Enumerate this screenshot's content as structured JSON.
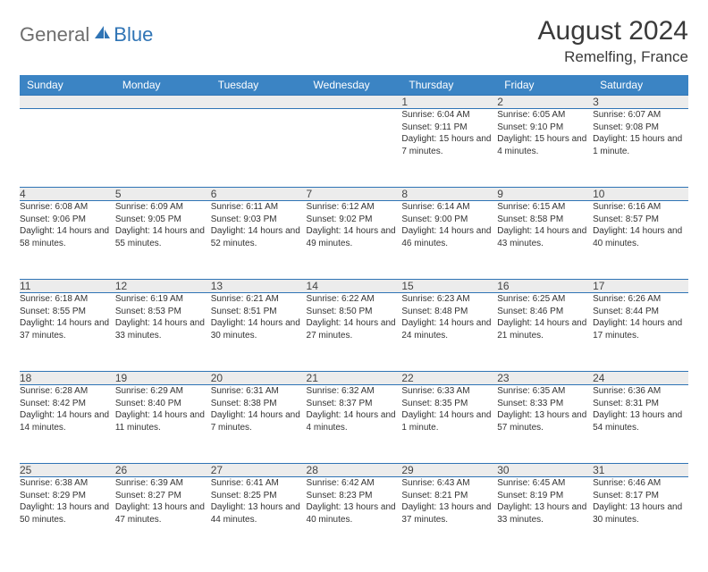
{
  "brand": {
    "part1": "General",
    "part2": "Blue"
  },
  "title": "August 2024",
  "location": "Remelfing, France",
  "colors": {
    "header_bg": "#3b84c4",
    "header_text": "#ffffff",
    "rule": "#2f74b5",
    "daynum_bg": "#ececec",
    "body_text": "#333333",
    "logo_gray": "#6e6e6e",
    "logo_blue": "#2f74b5",
    "page_bg": "#ffffff"
  },
  "typography": {
    "title_fontsize": 30,
    "location_fontsize": 17,
    "header_fontsize": 12,
    "daynum_fontsize": 12,
    "cell_fontsize": 10
  },
  "weekdays": [
    "Sunday",
    "Monday",
    "Tuesday",
    "Wednesday",
    "Thursday",
    "Friday",
    "Saturday"
  ],
  "weeks": [
    [
      null,
      null,
      null,
      null,
      {
        "n": "1",
        "sr": "6:04 AM",
        "ss": "9:11 PM",
        "dl": "15 hours and 7 minutes."
      },
      {
        "n": "2",
        "sr": "6:05 AM",
        "ss": "9:10 PM",
        "dl": "15 hours and 4 minutes."
      },
      {
        "n": "3",
        "sr": "6:07 AM",
        "ss": "9:08 PM",
        "dl": "15 hours and 1 minute."
      }
    ],
    [
      {
        "n": "4",
        "sr": "6:08 AM",
        "ss": "9:06 PM",
        "dl": "14 hours and 58 minutes."
      },
      {
        "n": "5",
        "sr": "6:09 AM",
        "ss": "9:05 PM",
        "dl": "14 hours and 55 minutes."
      },
      {
        "n": "6",
        "sr": "6:11 AM",
        "ss": "9:03 PM",
        "dl": "14 hours and 52 minutes."
      },
      {
        "n": "7",
        "sr": "6:12 AM",
        "ss": "9:02 PM",
        "dl": "14 hours and 49 minutes."
      },
      {
        "n": "8",
        "sr": "6:14 AM",
        "ss": "9:00 PM",
        "dl": "14 hours and 46 minutes."
      },
      {
        "n": "9",
        "sr": "6:15 AM",
        "ss": "8:58 PM",
        "dl": "14 hours and 43 minutes."
      },
      {
        "n": "10",
        "sr": "6:16 AM",
        "ss": "8:57 PM",
        "dl": "14 hours and 40 minutes."
      }
    ],
    [
      {
        "n": "11",
        "sr": "6:18 AM",
        "ss": "8:55 PM",
        "dl": "14 hours and 37 minutes."
      },
      {
        "n": "12",
        "sr": "6:19 AM",
        "ss": "8:53 PM",
        "dl": "14 hours and 33 minutes."
      },
      {
        "n": "13",
        "sr": "6:21 AM",
        "ss": "8:51 PM",
        "dl": "14 hours and 30 minutes."
      },
      {
        "n": "14",
        "sr": "6:22 AM",
        "ss": "8:50 PM",
        "dl": "14 hours and 27 minutes."
      },
      {
        "n": "15",
        "sr": "6:23 AM",
        "ss": "8:48 PM",
        "dl": "14 hours and 24 minutes."
      },
      {
        "n": "16",
        "sr": "6:25 AM",
        "ss": "8:46 PM",
        "dl": "14 hours and 21 minutes."
      },
      {
        "n": "17",
        "sr": "6:26 AM",
        "ss": "8:44 PM",
        "dl": "14 hours and 17 minutes."
      }
    ],
    [
      {
        "n": "18",
        "sr": "6:28 AM",
        "ss": "8:42 PM",
        "dl": "14 hours and 14 minutes."
      },
      {
        "n": "19",
        "sr": "6:29 AM",
        "ss": "8:40 PM",
        "dl": "14 hours and 11 minutes."
      },
      {
        "n": "20",
        "sr": "6:31 AM",
        "ss": "8:38 PM",
        "dl": "14 hours and 7 minutes."
      },
      {
        "n": "21",
        "sr": "6:32 AM",
        "ss": "8:37 PM",
        "dl": "14 hours and 4 minutes."
      },
      {
        "n": "22",
        "sr": "6:33 AM",
        "ss": "8:35 PM",
        "dl": "14 hours and 1 minute."
      },
      {
        "n": "23",
        "sr": "6:35 AM",
        "ss": "8:33 PM",
        "dl": "13 hours and 57 minutes."
      },
      {
        "n": "24",
        "sr": "6:36 AM",
        "ss": "8:31 PM",
        "dl": "13 hours and 54 minutes."
      }
    ],
    [
      {
        "n": "25",
        "sr": "6:38 AM",
        "ss": "8:29 PM",
        "dl": "13 hours and 50 minutes."
      },
      {
        "n": "26",
        "sr": "6:39 AM",
        "ss": "8:27 PM",
        "dl": "13 hours and 47 minutes."
      },
      {
        "n": "27",
        "sr": "6:41 AM",
        "ss": "8:25 PM",
        "dl": "13 hours and 44 minutes."
      },
      {
        "n": "28",
        "sr": "6:42 AM",
        "ss": "8:23 PM",
        "dl": "13 hours and 40 minutes."
      },
      {
        "n": "29",
        "sr": "6:43 AM",
        "ss": "8:21 PM",
        "dl": "13 hours and 37 minutes."
      },
      {
        "n": "30",
        "sr": "6:45 AM",
        "ss": "8:19 PM",
        "dl": "13 hours and 33 minutes."
      },
      {
        "n": "31",
        "sr": "6:46 AM",
        "ss": "8:17 PM",
        "dl": "13 hours and 30 minutes."
      }
    ]
  ],
  "labels": {
    "sunrise": "Sunrise: ",
    "sunset": "Sunset: ",
    "daylight": "Daylight: "
  }
}
